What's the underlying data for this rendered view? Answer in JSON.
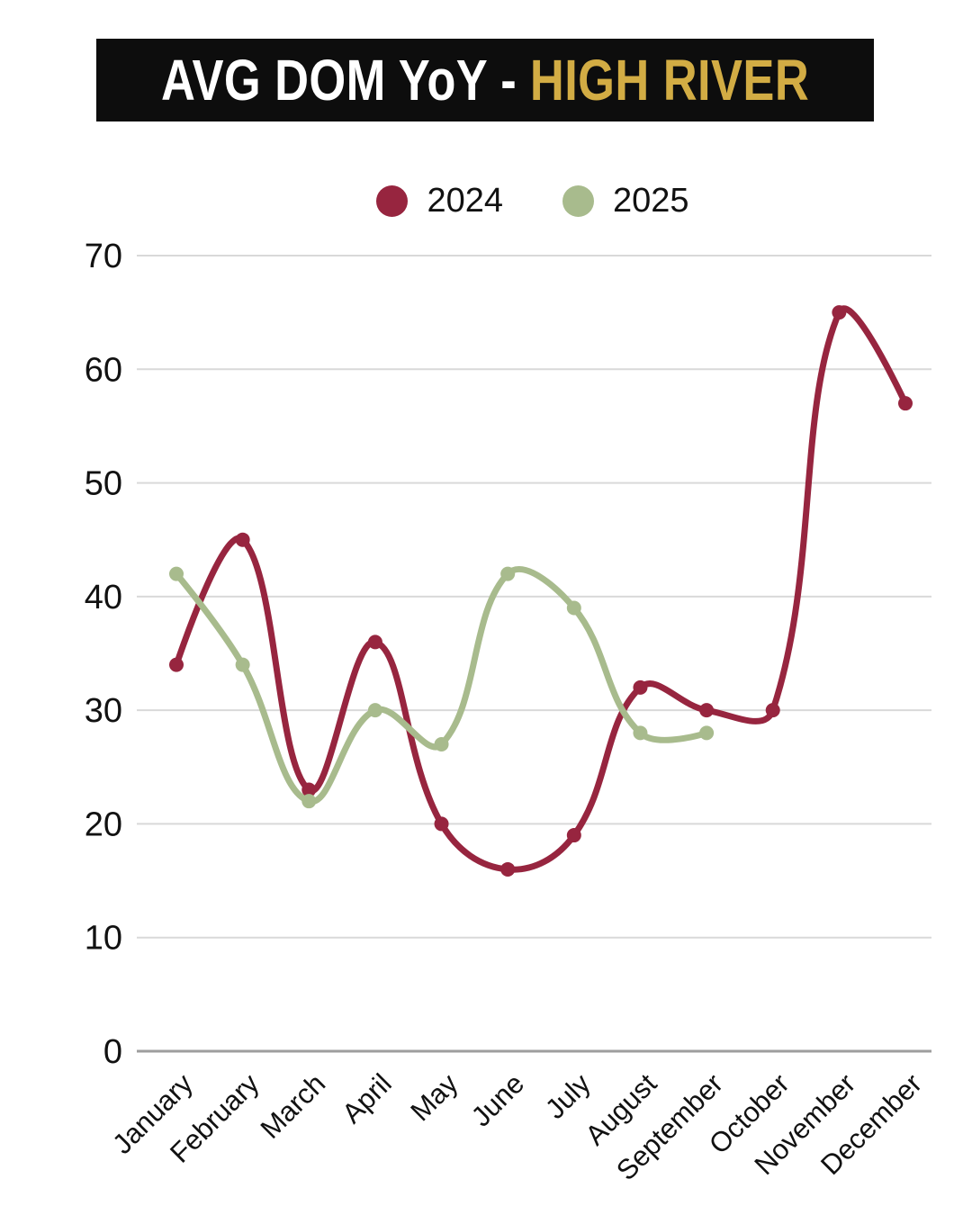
{
  "title": {
    "prefix": "AVG DOM YoY -",
    "accent": "HIGH RIVER"
  },
  "colors": {
    "background": "#ffffff",
    "banner_bg": "#0d0d0d",
    "title_prefix": "#ffffff",
    "title_accent": "#d2ac44",
    "grid": "#d9d9d9",
    "axis": "#9e9e9e",
    "tick_text": "#111111",
    "series_2024": "#97253f",
    "series_2025": "#a8bb8d"
  },
  "chart_data": {
    "type": "line",
    "title": "AVG DOM YoY - HIGH RIVER",
    "xlabel": "",
    "ylabel": "",
    "categories": [
      "January",
      "February",
      "March",
      "April",
      "May",
      "June",
      "July",
      "August",
      "September",
      "October",
      "November",
      "December"
    ],
    "series": [
      {
        "name": "2024",
        "color": "#97253f",
        "values": [
          34,
          45,
          23,
          36,
          20,
          16,
          19,
          32,
          30,
          30,
          65,
          57
        ]
      },
      {
        "name": "2025",
        "color": "#a8bb8d",
        "values": [
          42,
          34,
          22,
          30,
          27,
          42,
          39,
          28,
          28
        ]
      }
    ],
    "ylim": [
      0,
      70
    ],
    "yticks": [
      0,
      10,
      20,
      30,
      40,
      50,
      60,
      70
    ],
    "grid": "horizontal",
    "legend_position": "top",
    "line_tension": 0.4
  }
}
